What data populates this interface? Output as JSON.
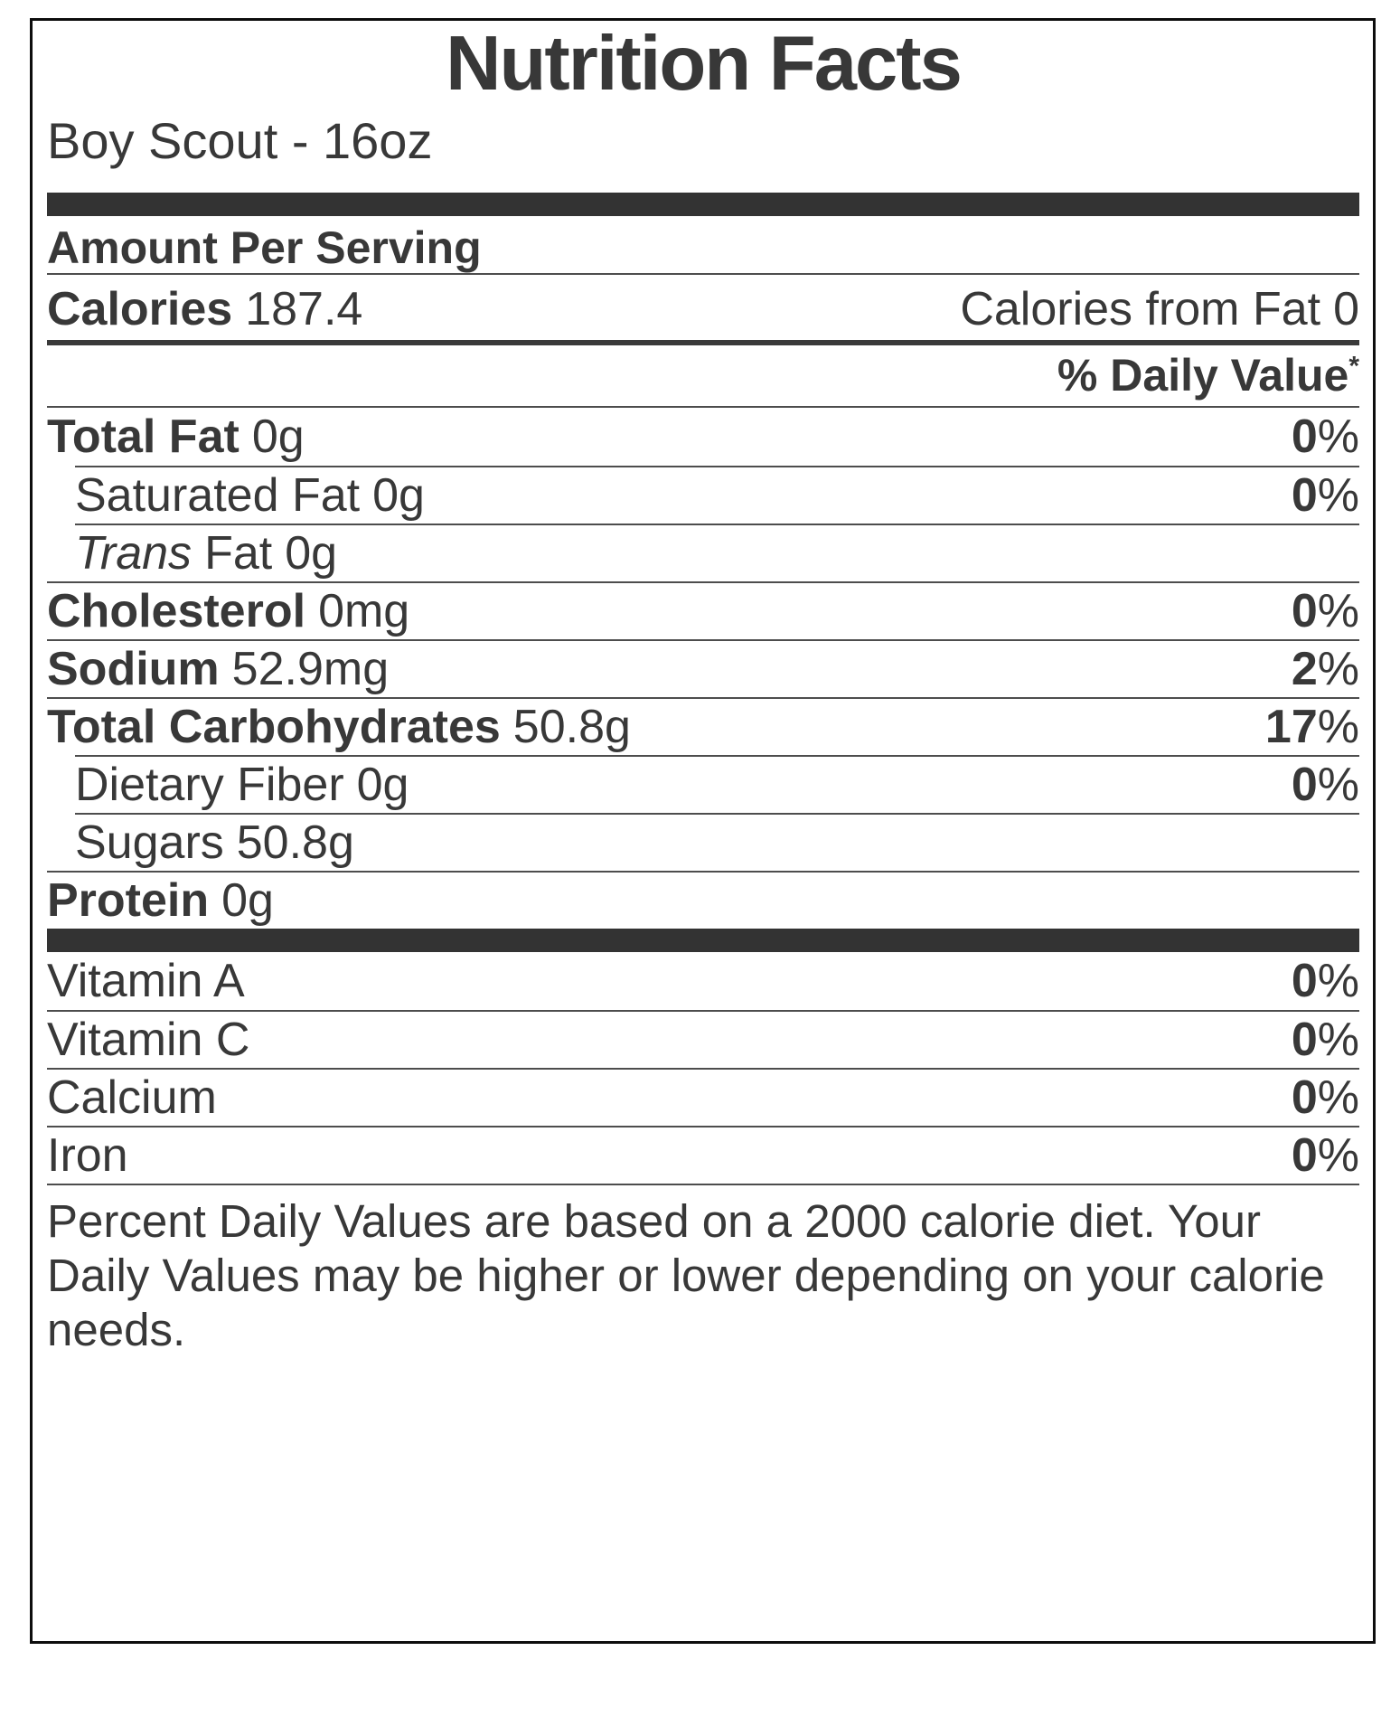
{
  "label": {
    "title": "Nutrition Facts",
    "product": "Boy Scout - 16oz",
    "amount_per_serving": "Amount Per Serving",
    "calories": {
      "label": "Calories",
      "value": "187.4",
      "from_fat_label": "Calories from Fat",
      "from_fat_value": "0"
    },
    "daily_value_heading": {
      "text": "% Daily Value",
      "asterisk": "*"
    },
    "rows": [
      {
        "label": "Total Fat",
        "amount": "0g",
        "dv_number": "0",
        "dv_percent": "%"
      },
      {
        "label": "Saturated Fat",
        "amount": "0g",
        "dv_number": "0",
        "dv_percent": "%"
      },
      {
        "label_italic": "Trans",
        "label": "Fat",
        "amount": "0g"
      },
      {
        "label": "Cholesterol",
        "amount": "0mg",
        "dv_number": "0",
        "dv_percent": "%"
      },
      {
        "label": "Sodium",
        "amount": "52.9mg",
        "dv_number": "2",
        "dv_percent": "%"
      },
      {
        "label": "Total Carbohydrates",
        "amount": "50.8g",
        "dv_number": "17",
        "dv_percent": "%"
      },
      {
        "label": "Dietary Fiber",
        "amount": "0g",
        "dv_number": "0",
        "dv_percent": "%"
      },
      {
        "label": "Sugars",
        "amount": "50.8g"
      },
      {
        "label": "Protein",
        "amount": "0g"
      }
    ],
    "vitamins": [
      {
        "label": "Vitamin A",
        "dv_number": "0",
        "dv_percent": "%"
      },
      {
        "label": "Vitamin C",
        "dv_number": "0",
        "dv_percent": "%"
      },
      {
        "label": "Calcium",
        "dv_number": "0",
        "dv_percent": "%"
      },
      {
        "label": "Iron",
        "dv_number": "0",
        "dv_percent": "%"
      }
    ],
    "footnote": "Percent Daily Values are based on a 2000 calorie diet. Your Daily Values may be higher or lower depending on your calorie needs.",
    "colors": {
      "text": "#383838",
      "separator_bar": "#333333",
      "rule": "#4d4d4d",
      "border": "#0d0d0d",
      "background": "#ffffff"
    }
  }
}
